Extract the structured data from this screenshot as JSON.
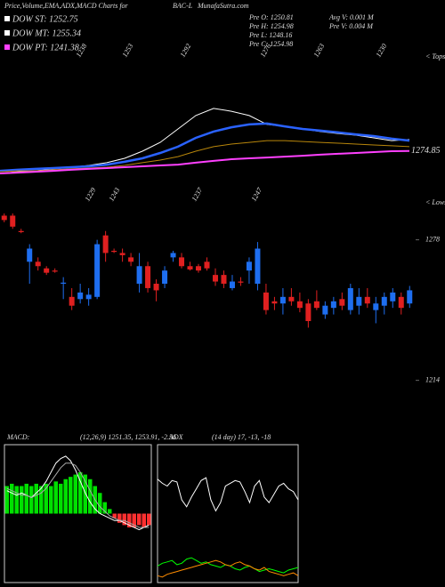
{
  "header": {
    "title": "Price,Volume,EMA,ADX,MACD Charts for",
    "symbol": "BAC-L",
    "site": "MunafaSutra.com",
    "legend": [
      {
        "label": "DOW ST: 1252.75",
        "color": "#ffffff"
      },
      {
        "label": "DOW MT: 1255.34",
        "color": "#ffffff"
      },
      {
        "label": "DOW PT: 1241.38",
        "color": "#ff40ff"
      }
    ],
    "stats": [
      "Pre  O: 1250.81",
      "Pre  H: 1254.98",
      "Pre  L: 1248.16",
      "Pre  C: 1254.98",
      "Avg V: 0.001 M",
      "Pre  V: 0.004  M"
    ]
  },
  "chart_data": [
    {
      "type": "line",
      "tops": [
        "1238",
        "1253",
        "1292",
        "1276",
        "1263",
        "1230"
      ],
      "lows": [
        "1229",
        "1243",
        "1237",
        "1247"
      ],
      "tops_marker": "< Tops",
      "lows_marker": "< Lows",
      "ylim": [
        1250,
        1320
      ],
      "series": [
        {
          "color": "#ffffff",
          "width": 1,
          "values": [
            1264.4,
            1265.2,
            1265.6,
            1266.5,
            1267.3,
            1268.1,
            1269.4,
            1271.4,
            1274.7,
            1278.8,
            1285.0,
            1291.2,
            1294.5,
            1293.2,
            1291.2,
            1287.1,
            1286.2,
            1285.0,
            1283.8,
            1282.9,
            1282.1,
            1280.9,
            1279.6,
            1280.1
          ]
        },
        {
          "color": "#2a62ff",
          "width": 2.5,
          "values": [
            1265.6,
            1266.1,
            1266.5,
            1266.9,
            1267.3,
            1267.7,
            1268.5,
            1269.8,
            1271.4,
            1273.9,
            1276.8,
            1280.9,
            1283.8,
            1285.8,
            1287.1,
            1287.5,
            1286.2,
            1285.0,
            1284.2,
            1283.4,
            1282.5,
            1281.7,
            1280.5,
            1279.6
          ]
        },
        {
          "color": "#b8860b",
          "width": 1,
          "values": [
            1265.2,
            1265.6,
            1265.6,
            1266.1,
            1266.5,
            1266.9,
            1267.3,
            1268.1,
            1269.4,
            1270.6,
            1272.2,
            1274.7,
            1276.8,
            1278.0,
            1278.8,
            1279.6,
            1279.6,
            1279.2,
            1278.8,
            1278.4,
            1278.0,
            1277.6,
            1277.2,
            1276.8
          ]
        },
        {
          "color": "#ff40ff",
          "width": 2,
          "values": [
            1264.4,
            1264.8,
            1265.2,
            1265.6,
            1266.1,
            1266.5,
            1266.9,
            1267.3,
            1267.7,
            1268.1,
            1268.5,
            1269.4,
            1270.2,
            1271.0,
            1271.4,
            1271.8,
            1272.2,
            1272.6,
            1273.1,
            1273.5,
            1273.9,
            1274.3,
            1274.7,
            1274.85
          ]
        }
      ]
    },
    {
      "type": "candlestick",
      "up_color": "#1e6ef0",
      "down_color": "#e02020",
      "ylim": [
        1209,
        1290
      ],
      "yticks": [
        1278,
        1214
      ],
      "open": [
        1289,
        1289,
        1282,
        1268,
        1268,
        1265,
        1264,
        1258,
        1252,
        1251,
        1251,
        1252,
        1280,
        1273,
        1272,
        1270,
        1258,
        1266,
        1258,
        1258,
        1270,
        1270,
        1266,
        1266,
        1268,
        1262,
        1262,
        1256,
        1259,
        1264,
        1258,
        1254,
        1250,
        1249,
        1252,
        1250,
        1249,
        1250,
        1244,
        1247,
        1251,
        1246,
        1248,
        1252,
        1246,
        1248,
        1250,
        1252,
        1249
      ],
      "high": [
        1290,
        1290,
        1283,
        1276,
        1270,
        1266,
        1265,
        1261,
        1256,
        1258,
        1256,
        1278,
        1282,
        1274,
        1274,
        1272,
        1272,
        1268,
        1260,
        1266,
        1273,
        1272,
        1268,
        1267,
        1270,
        1265,
        1264,
        1262,
        1261,
        1270,
        1277,
        1258,
        1252,
        1256,
        1256,
        1254,
        1251,
        1255,
        1250,
        1252,
        1254,
        1258,
        1256,
        1256,
        1252,
        1254,
        1256,
        1254,
        1257
      ],
      "low": [
        1286,
        1283,
        1281,
        1258,
        1264,
        1262,
        1263,
        1251,
        1246,
        1249,
        1248,
        1251,
        1268,
        1272,
        1268,
        1266,
        1254,
        1254,
        1250,
        1256,
        1268,
        1265,
        1264,
        1263,
        1264,
        1257,
        1256,
        1255,
        1257,
        1258,
        1255,
        1244,
        1246,
        1244,
        1248,
        1245,
        1238,
        1246,
        1242,
        1244,
        1246,
        1244,
        1244,
        1247,
        1240,
        1244,
        1247,
        1244,
        1247
      ],
      "close": [
        1287,
        1284,
        1281.5,
        1274,
        1266,
        1263,
        1263.5,
        1258.5,
        1248,
        1254,
        1253,
        1276,
        1272,
        1272.5,
        1271,
        1268,
        1266,
        1256,
        1255,
        1264,
        1272,
        1266,
        1264.5,
        1264,
        1265,
        1259,
        1258,
        1259,
        1258.5,
        1268,
        1274,
        1246,
        1249,
        1252,
        1250,
        1247,
        1241,
        1247,
        1248,
        1250,
        1248,
        1256,
        1252,
        1249,
        1249,
        1252,
        1254,
        1247,
        1255
      ]
    },
    {
      "type": "macd",
      "title": "MACD:",
      "subtitle": "(12,26,9) 1251.35, 1253.91, -2.56",
      "ylim": [
        -30,
        30
      ],
      "histogram": {
        "pos_color": "#00e000",
        "neg_color": "#ff3030",
        "values": [
          12,
          13,
          12,
          12,
          13,
          12,
          13,
          12,
          13,
          12,
          14,
          13,
          15,
          16,
          17,
          18,
          17,
          15,
          12,
          9,
          5,
          2,
          -2,
          -4,
          -5,
          -6,
          -6,
          -5,
          -6,
          -5
        ]
      },
      "series": [
        {
          "color": "#ffffff",
          "values": [
            10,
            9,
            8,
            9,
            8,
            7,
            9,
            11,
            14,
            18,
            22,
            24,
            25,
            23,
            19,
            14,
            9,
            5,
            2,
            0,
            -1,
            -2,
            -3,
            -3,
            -4,
            -5,
            -6,
            -7,
            -6,
            -5
          ]
        },
        {
          "color": "#aaaaaa",
          "values": [
            11,
            10,
            9,
            8,
            8,
            7,
            8,
            9,
            11,
            14,
            17,
            20,
            22,
            22,
            21,
            18,
            14,
            10,
            6,
            3,
            1,
            -1,
            -2,
            -3,
            -3,
            -4,
            -5,
            -6,
            -6,
            -6
          ]
        }
      ]
    },
    {
      "type": "adx",
      "title": "ADX",
      "subtitle": "(14  day) 17, -13, -18",
      "ylim": [
        0,
        100
      ],
      "series": [
        {
          "color": "#ffffff",
          "values": [
            75,
            72,
            70,
            74,
            73,
            60,
            55,
            62,
            68,
            74,
            76,
            60,
            52,
            58,
            70,
            72,
            74,
            73,
            66,
            58,
            70,
            74,
            62,
            58,
            64,
            70,
            72,
            68,
            66,
            60
          ]
        },
        {
          "color": "#00ff00",
          "values": [
            12,
            14,
            15,
            16,
            13,
            14,
            17,
            18,
            16,
            14,
            15,
            13,
            12,
            11,
            13,
            12,
            10,
            9,
            11,
            12,
            10,
            8,
            9,
            10,
            9,
            8,
            7,
            9,
            10,
            11
          ]
        },
        {
          "color": "#ff8c00",
          "values": [
            5,
            4,
            6,
            7,
            8,
            9,
            10,
            11,
            12,
            13,
            14,
            15,
            16,
            15,
            13,
            12,
            14,
            15,
            13,
            12,
            10,
            9,
            11,
            8,
            7,
            6,
            5,
            6,
            7,
            5
          ]
        }
      ]
    }
  ]
}
